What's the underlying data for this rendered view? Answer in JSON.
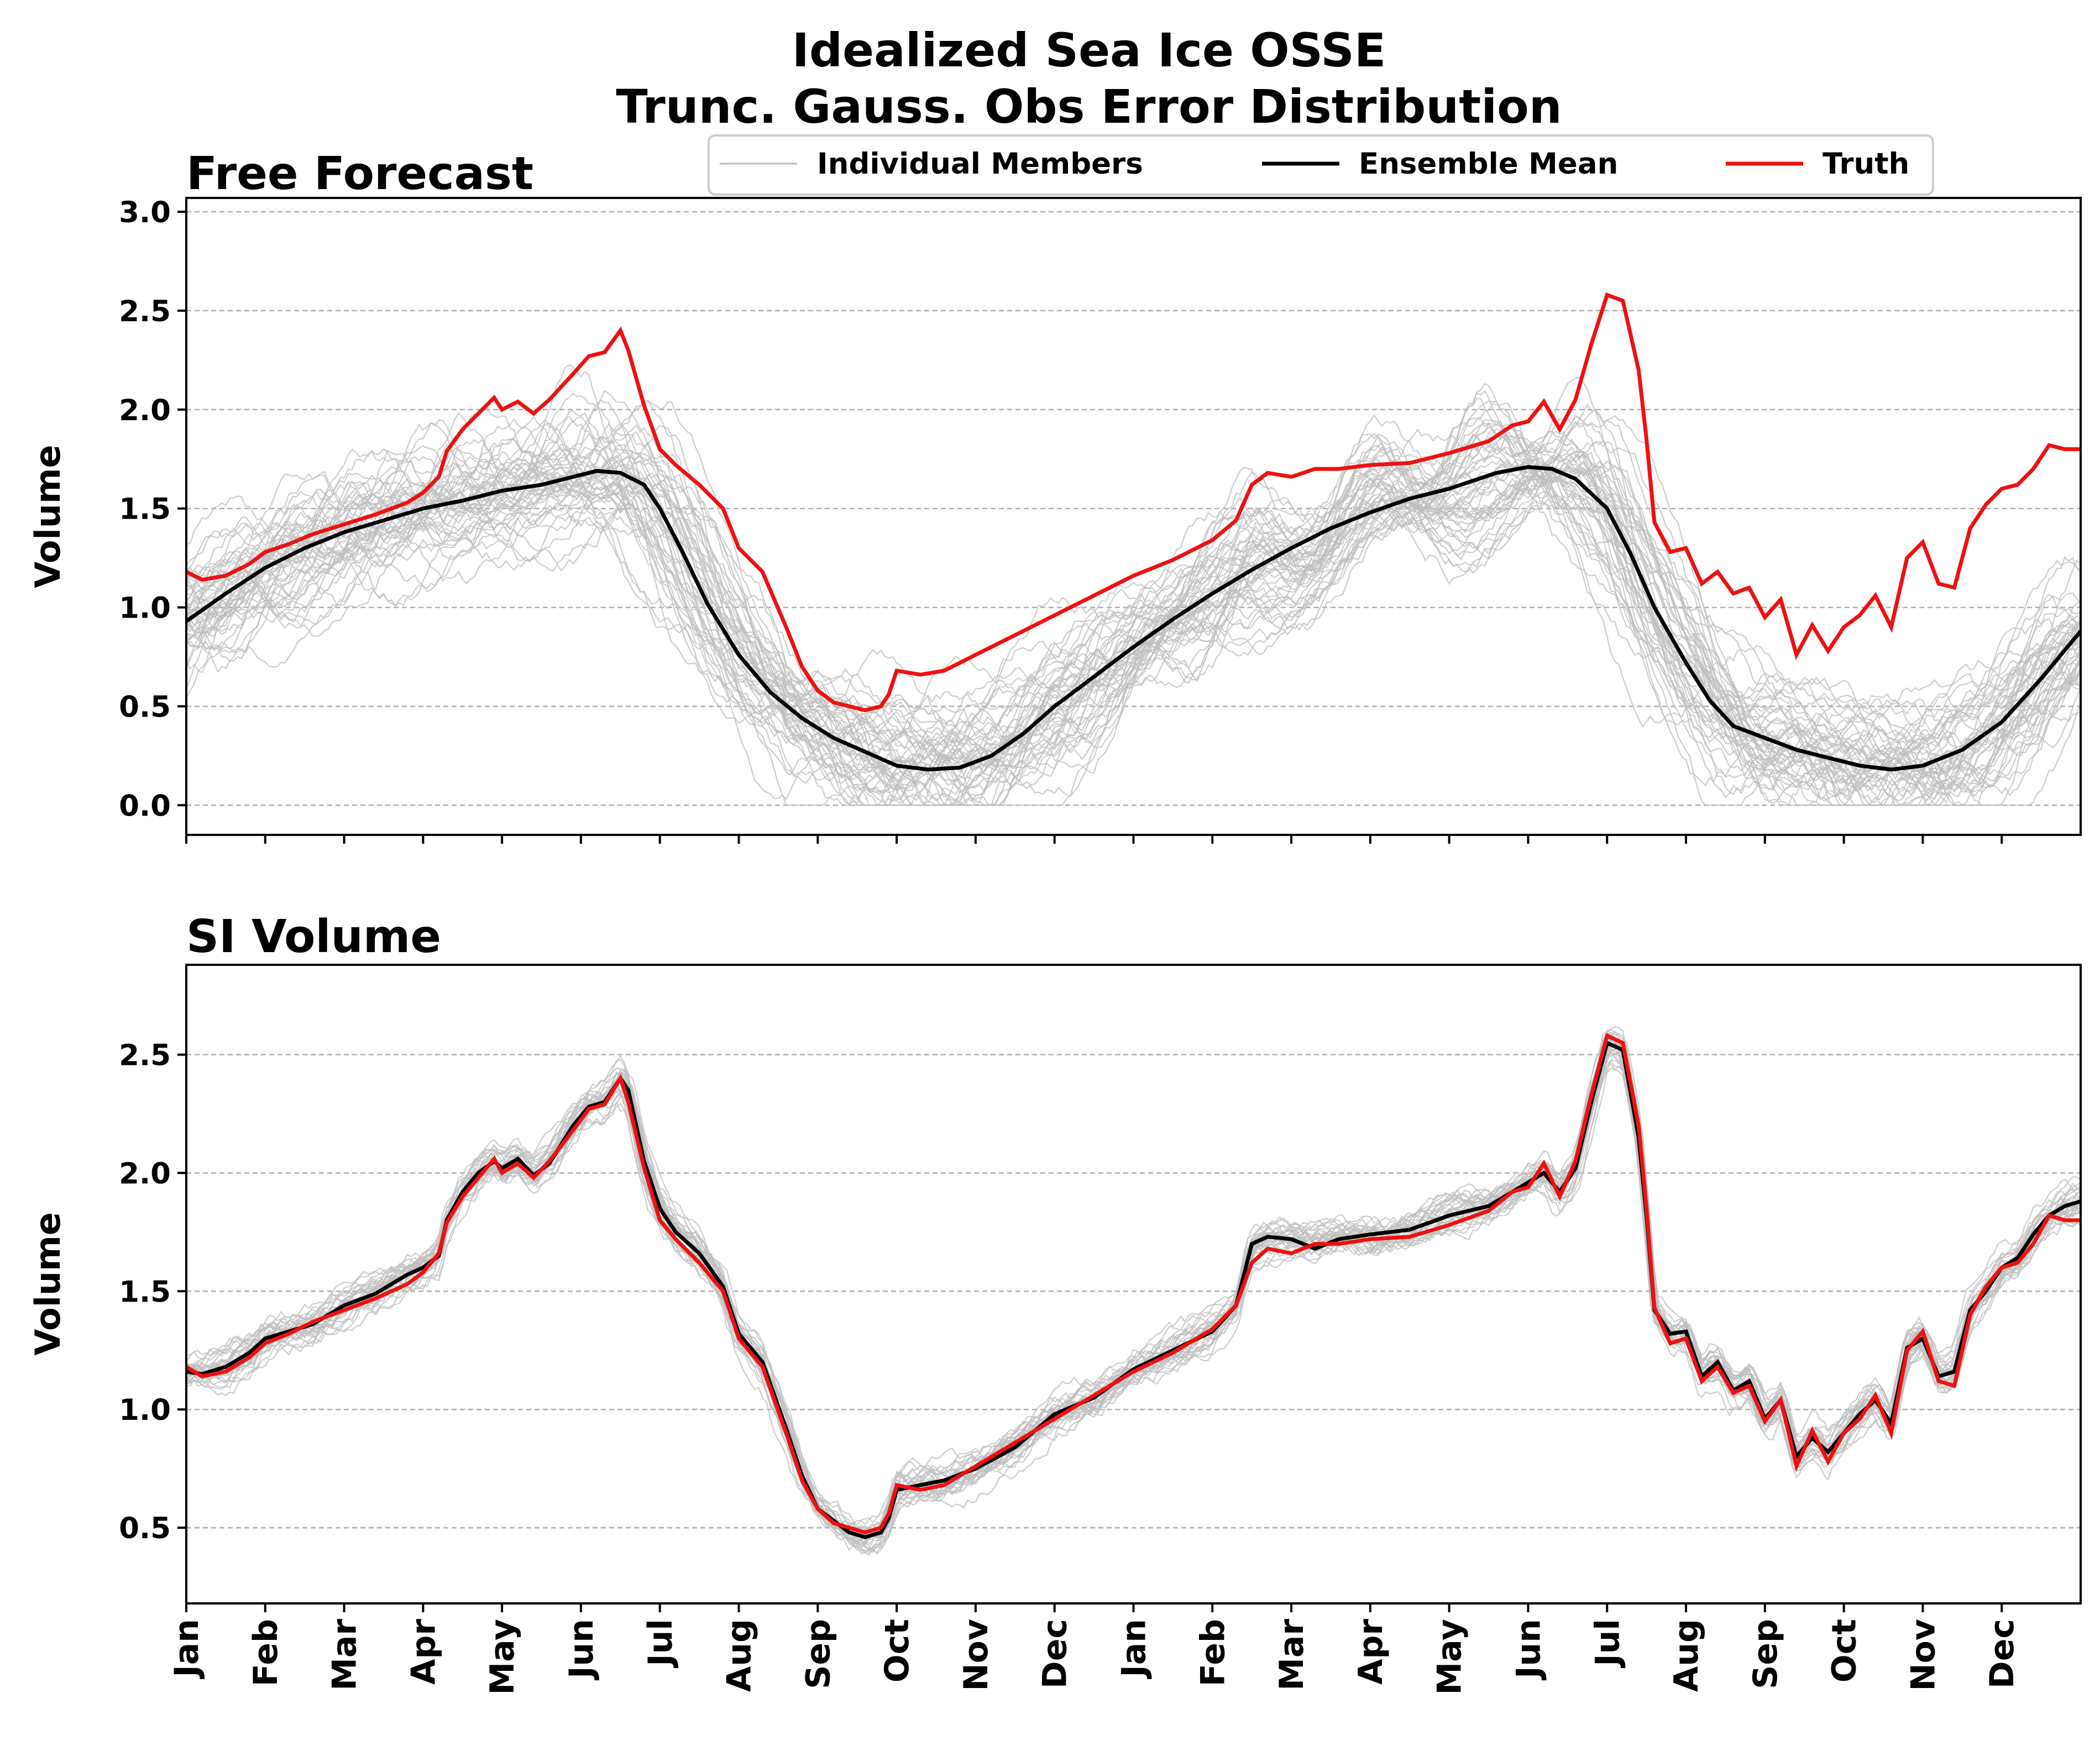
{
  "figure": {
    "title_line1": "Idealized Sea Ice OSSE",
    "title_line2": "Trunc. Gauss. Obs Error Distribution"
  },
  "legend": {
    "members_label": "Individual Members",
    "mean_label": "Ensemble Mean",
    "truth_label": "Truth"
  },
  "colors": {
    "members": "#bdbdbd",
    "mean": "#000000",
    "truth": "#ee1111",
    "grid": "#b0b0b0"
  },
  "chart_data": [
    {
      "type": "line",
      "title": "Free Forecast",
      "ylabel": "Volume",
      "ylim": [
        -0.15,
        3.07
      ],
      "yticks": [
        "0.0",
        "0.5",
        "1.0",
        "1.5",
        "2.0",
        "2.5",
        "3.0"
      ],
      "xlim": [
        0,
        24
      ],
      "x_unit": "months since start of first January (two-year run)",
      "grid": "horizontal dashed",
      "legend_position": "top-center",
      "series": [
        {
          "name": "Ensemble Mean",
          "x": [
            0,
            0.5,
            1,
            1.5,
            2,
            2.5,
            3,
            3.5,
            4,
            4.5,
            5,
            5.2,
            5.5,
            5.8,
            6,
            6.3,
            6.6,
            7,
            7.4,
            7.8,
            8.2,
            8.6,
            9,
            9.4,
            9.8,
            10.2,
            10.6,
            11,
            11.5,
            12,
            12.5,
            13,
            13.5,
            14,
            14.5,
            15,
            15.5,
            16,
            16.3,
            16.6,
            17,
            17.3,
            17.6,
            18,
            18.3,
            18.6,
            19,
            19.3,
            19.6,
            20,
            20.4,
            20.8,
            21.2,
            21.6,
            22,
            22.5,
            23,
            23.5,
            24
          ],
          "y": [
            0.93,
            1.07,
            1.2,
            1.3,
            1.38,
            1.44,
            1.5,
            1.54,
            1.59,
            1.62,
            1.67,
            1.69,
            1.68,
            1.62,
            1.5,
            1.27,
            1.02,
            0.76,
            0.57,
            0.44,
            0.34,
            0.27,
            0.2,
            0.18,
            0.19,
            0.25,
            0.36,
            0.5,
            0.65,
            0.8,
            0.94,
            1.07,
            1.19,
            1.3,
            1.4,
            1.48,
            1.55,
            1.6,
            1.64,
            1.68,
            1.71,
            1.7,
            1.65,
            1.5,
            1.27,
            1.0,
            0.72,
            0.53,
            0.4,
            0.34,
            0.28,
            0.24,
            0.2,
            0.18,
            0.2,
            0.28,
            0.42,
            0.64,
            0.88
          ]
        },
        {
          "name": "Truth",
          "x": [
            0,
            0.2,
            0.5,
            0.8,
            1,
            1.3,
            1.6,
            2,
            2.4,
            2.8,
            3,
            3.2,
            3.3,
            3.5,
            3.7,
            3.9,
            4,
            4.2,
            4.4,
            4.6,
            4.9,
            5.1,
            5.3,
            5.5,
            5.6,
            5.8,
            6,
            6.2,
            6.5,
            6.8,
            7,
            7.3,
            7.6,
            7.8,
            8,
            8.2,
            8.4,
            8.6,
            8.8,
            8.9,
            9,
            9.3,
            9.6,
            10,
            10.5,
            11,
            11.5,
            12,
            12.5,
            13,
            13.3,
            13.5,
            13.7,
            14,
            14.3,
            14.6,
            15,
            15.5,
            16,
            16.5,
            16.8,
            17,
            17.2,
            17.4,
            17.6,
            17.8,
            18,
            18.2,
            18.4,
            18.5,
            18.6,
            18.8,
            19,
            19.2,
            19.4,
            19.6,
            19.8,
            20,
            20.2,
            20.4,
            20.6,
            20.8,
            21,
            21.2,
            21.4,
            21.6,
            21.8,
            22,
            22.2,
            22.4,
            22.6,
            22.8,
            23,
            23.2,
            23.4,
            23.6,
            23.8,
            24
          ],
          "y": [
            1.18,
            1.14,
            1.16,
            1.22,
            1.28,
            1.32,
            1.37,
            1.42,
            1.47,
            1.53,
            1.58,
            1.66,
            1.79,
            1.9,
            1.98,
            2.06,
            2.0,
            2.04,
            1.98,
            2.05,
            2.18,
            2.27,
            2.29,
            2.4,
            2.3,
            2.02,
            1.8,
            1.72,
            1.62,
            1.5,
            1.3,
            1.18,
            0.9,
            0.7,
            0.58,
            0.52,
            0.5,
            0.48,
            0.5,
            0.56,
            0.68,
            0.66,
            0.68,
            0.76,
            0.86,
            0.96,
            1.06,
            1.16,
            1.24,
            1.34,
            1.44,
            1.62,
            1.68,
            1.66,
            1.7,
            1.7,
            1.72,
            1.73,
            1.78,
            1.84,
            1.92,
            1.94,
            2.04,
            1.9,
            2.05,
            2.33,
            2.58,
            2.55,
            2.2,
            1.85,
            1.43,
            1.28,
            1.3,
            1.12,
            1.18,
            1.07,
            1.1,
            0.95,
            1.04,
            0.76,
            0.91,
            0.78,
            0.9,
            0.96,
            1.06,
            0.9,
            1.25,
            1.33,
            1.12,
            1.1,
            1.4,
            1.52,
            1.6,
            1.62,
            1.7,
            1.82,
            1.8,
            1.8
          ]
        }
      ]
    },
    {
      "type": "line",
      "title": "SI Volume",
      "ylabel": "Volume",
      "ylim": [
        0.18,
        2.88
      ],
      "yticks": [
        "0.5",
        "1.0",
        "1.5",
        "2.0",
        "2.5"
      ],
      "xlim": [
        0,
        24
      ],
      "xticks": [
        "Jan",
        "Feb",
        "Mar",
        "Apr",
        "May",
        "Jun",
        "Jul",
        "Aug",
        "Sep",
        "Oct",
        "Nov",
        "Dec",
        "Jan",
        "Feb",
        "Mar",
        "Apr",
        "May",
        "Jun",
        "Jul",
        "Aug",
        "Sep",
        "Oct",
        "Nov",
        "Dec"
      ],
      "grid": "horizontal dashed",
      "series": [
        {
          "name": "Ensemble Mean",
          "x": [
            0,
            0.2,
            0.5,
            0.8,
            1,
            1.3,
            1.6,
            2,
            2.4,
            2.8,
            3,
            3.2,
            3.3,
            3.5,
            3.7,
            3.9,
            4,
            4.2,
            4.4,
            4.6,
            4.9,
            5.1,
            5.3,
            5.5,
            5.6,
            5.8,
            6,
            6.2,
            6.5,
            6.8,
            7,
            7.3,
            7.6,
            7.8,
            8,
            8.2,
            8.4,
            8.6,
            8.8,
            8.9,
            9,
            9.3,
            9.6,
            10,
            10.5,
            11,
            11.5,
            12,
            12.5,
            13,
            13.3,
            13.5,
            13.7,
            14,
            14.3,
            14.6,
            15,
            15.5,
            16,
            16.5,
            16.8,
            17,
            17.2,
            17.4,
            17.6,
            17.8,
            18,
            18.2,
            18.4,
            18.5,
            18.6,
            18.8,
            19,
            19.2,
            19.4,
            19.6,
            19.8,
            20,
            20.2,
            20.4,
            20.6,
            20.8,
            21,
            21.2,
            21.4,
            21.6,
            21.8,
            22,
            22.2,
            22.4,
            22.6,
            22.8,
            23,
            23.2,
            23.4,
            23.6,
            23.8,
            24
          ],
          "y": [
            1.16,
            1.15,
            1.18,
            1.24,
            1.3,
            1.33,
            1.36,
            1.44,
            1.49,
            1.57,
            1.6,
            1.65,
            1.8,
            1.92,
            2.0,
            2.05,
            2.02,
            2.06,
            1.99,
            2.04,
            2.2,
            2.28,
            2.3,
            2.4,
            2.35,
            2.05,
            1.85,
            1.75,
            1.66,
            1.52,
            1.32,
            1.2,
            0.92,
            0.72,
            0.58,
            0.53,
            0.48,
            0.46,
            0.48,
            0.54,
            0.66,
            0.68,
            0.7,
            0.75,
            0.84,
            0.98,
            1.05,
            1.17,
            1.25,
            1.33,
            1.44,
            1.7,
            1.73,
            1.72,
            1.68,
            1.72,
            1.74,
            1.76,
            1.82,
            1.86,
            1.92,
            1.96,
            2.0,
            1.92,
            2.02,
            2.3,
            2.55,
            2.52,
            2.15,
            1.82,
            1.42,
            1.32,
            1.33,
            1.14,
            1.2,
            1.08,
            1.12,
            0.96,
            1.04,
            0.8,
            0.88,
            0.82,
            0.9,
            0.98,
            1.04,
            0.94,
            1.26,
            1.3,
            1.14,
            1.16,
            1.42,
            1.5,
            1.6,
            1.64,
            1.74,
            1.82,
            1.86,
            1.88
          ]
        },
        {
          "name": "Truth",
          "x": [
            0,
            0.2,
            0.5,
            0.8,
            1,
            1.3,
            1.6,
            2,
            2.4,
            2.8,
            3,
            3.2,
            3.3,
            3.5,
            3.7,
            3.9,
            4,
            4.2,
            4.4,
            4.6,
            4.9,
            5.1,
            5.3,
            5.5,
            5.6,
            5.8,
            6,
            6.2,
            6.5,
            6.8,
            7,
            7.3,
            7.6,
            7.8,
            8,
            8.2,
            8.4,
            8.6,
            8.8,
            8.9,
            9,
            9.3,
            9.6,
            10,
            10.5,
            11,
            11.5,
            12,
            12.5,
            13,
            13.3,
            13.5,
            13.7,
            14,
            14.3,
            14.6,
            15,
            15.5,
            16,
            16.5,
            16.8,
            17,
            17.2,
            17.4,
            17.6,
            17.8,
            18,
            18.2,
            18.4,
            18.5,
            18.6,
            18.8,
            19,
            19.2,
            19.4,
            19.6,
            19.8,
            20,
            20.2,
            20.4,
            20.6,
            20.8,
            21,
            21.2,
            21.4,
            21.6,
            21.8,
            22,
            22.2,
            22.4,
            22.6,
            22.8,
            23,
            23.2,
            23.4,
            23.6,
            23.8,
            24
          ],
          "y": [
            1.18,
            1.14,
            1.16,
            1.22,
            1.28,
            1.32,
            1.37,
            1.42,
            1.47,
            1.53,
            1.58,
            1.66,
            1.79,
            1.9,
            1.98,
            2.06,
            2.0,
            2.04,
            1.98,
            2.05,
            2.18,
            2.27,
            2.29,
            2.4,
            2.3,
            2.02,
            1.8,
            1.72,
            1.62,
            1.5,
            1.3,
            1.18,
            0.9,
            0.7,
            0.58,
            0.52,
            0.5,
            0.48,
            0.5,
            0.56,
            0.68,
            0.66,
            0.68,
            0.76,
            0.86,
            0.96,
            1.06,
            1.16,
            1.24,
            1.34,
            1.44,
            1.62,
            1.68,
            1.66,
            1.7,
            1.7,
            1.72,
            1.73,
            1.78,
            1.84,
            1.92,
            1.94,
            2.04,
            1.9,
            2.05,
            2.33,
            2.58,
            2.55,
            2.2,
            1.85,
            1.43,
            1.28,
            1.3,
            1.12,
            1.18,
            1.07,
            1.1,
            0.95,
            1.04,
            0.76,
            0.91,
            0.78,
            0.9,
            0.96,
            1.06,
            0.9,
            1.25,
            1.33,
            1.12,
            1.1,
            1.4,
            1.52,
            1.6,
            1.62,
            1.7,
            1.82,
            1.8,
            1.8
          ]
        }
      ]
    }
  ]
}
